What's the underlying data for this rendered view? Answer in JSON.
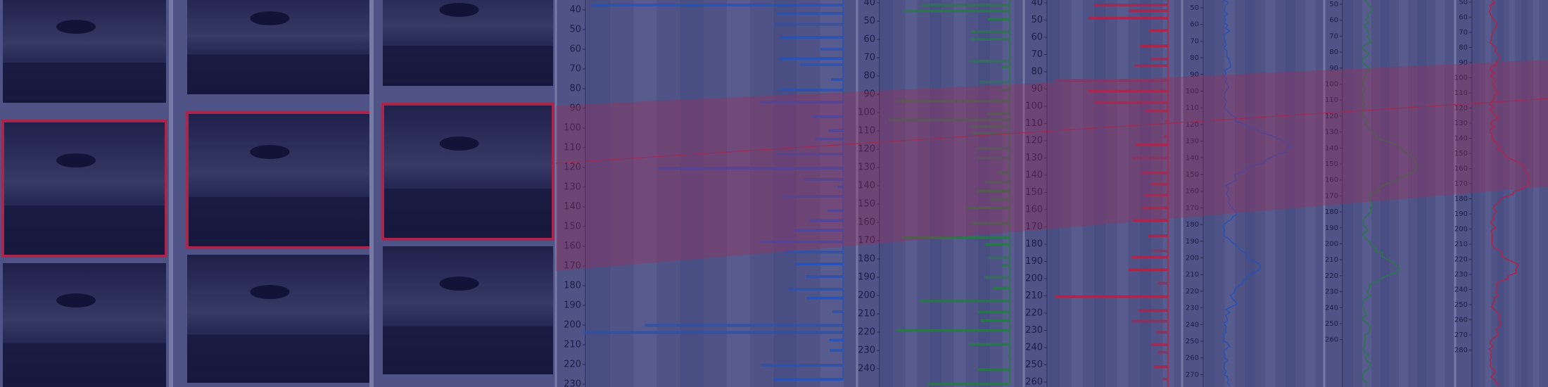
{
  "panels": [
    {
      "ticks": [
        40,
        50,
        60,
        70,
        80,
        90,
        100,
        110,
        120,
        130,
        140,
        150,
        160,
        170,
        180,
        190,
        200,
        210,
        220,
        230
      ]
    },
    {
      "ticks": [
        40,
        50,
        60,
        70,
        80,
        90,
        100,
        110,
        120,
        130,
        140,
        150,
        160,
        170,
        180,
        190,
        200,
        210,
        220,
        230,
        240
      ]
    },
    {
      "ticks": [
        40,
        50,
        60,
        70,
        80,
        90,
        100,
        110,
        120,
        130,
        140,
        150,
        160,
        170,
        180,
        190,
        200,
        210,
        220,
        230,
        240,
        250,
        260
      ]
    },
    {
      "ticks": [
        50,
        60,
        70,
        80,
        90,
        100,
        110,
        120,
        130,
        140,
        150,
        160,
        170,
        180,
        190,
        200,
        210,
        220,
        230,
        240,
        250,
        260,
        270
      ]
    },
    {
      "ticks": [
        50,
        60,
        70,
        80,
        90,
        100,
        110,
        120,
        130,
        140,
        150,
        160,
        170,
        180,
        190,
        200,
        210,
        220,
        230,
        240,
        250,
        260
      ]
    },
    {
      "ticks": [
        50,
        60,
        70,
        80,
        90,
        100,
        110,
        120,
        130,
        140,
        150,
        160,
        170,
        180,
        190,
        200,
        210,
        220,
        230,
        240,
        250,
        260,
        270,
        280
      ]
    }
  ]
}
